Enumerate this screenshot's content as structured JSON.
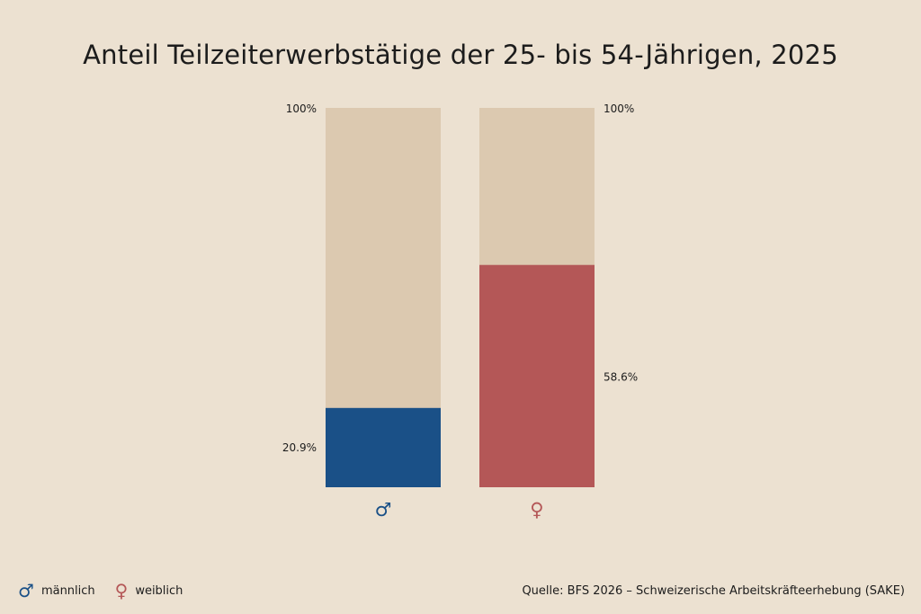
{
  "title": "Anteil Teilzeiterwerbstätige der 25- bis 54-Jährigen, 2025",
  "source": "Quelle: BFS 2026 – Schweizerische Arbeitskräfteerhebung (SAKE)",
  "colors": {
    "background": "#ece1d1",
    "track": "#dcc9b0",
    "male": "#1a5087",
    "female": "#b45757",
    "text": "#1c1c1c"
  },
  "legend": [
    {
      "symbol": "♂",
      "label": "männlich",
      "color": "#1a5087"
    },
    {
      "symbol": "♀",
      "label": "weiblich",
      "color": "#b45757"
    }
  ],
  "chart_data": {
    "type": "bar",
    "title": "Anteil Teilzeiterwerbstätige der 25- bis 54-Jährigen, 2025",
    "categories": [
      "♂",
      "♀"
    ],
    "series": [
      {
        "name": "männlich",
        "values": [
          20.9,
          null
        ]
      },
      {
        "name": "weiblich",
        "values": [
          null,
          58.6
        ]
      }
    ],
    "bars": [
      {
        "category": "♂",
        "value": 20.9,
        "value_label": "20.9%",
        "max_label": "100%",
        "color": "#1a5087",
        "label_side": "left"
      },
      {
        "category": "♀",
        "value": 58.6,
        "value_label": "58.6%",
        "max_label": "100%",
        "color": "#b45757",
        "label_side": "right"
      }
    ],
    "ylim": [
      0,
      100
    ],
    "grid": false,
    "legend_position": "bottom-left"
  }
}
